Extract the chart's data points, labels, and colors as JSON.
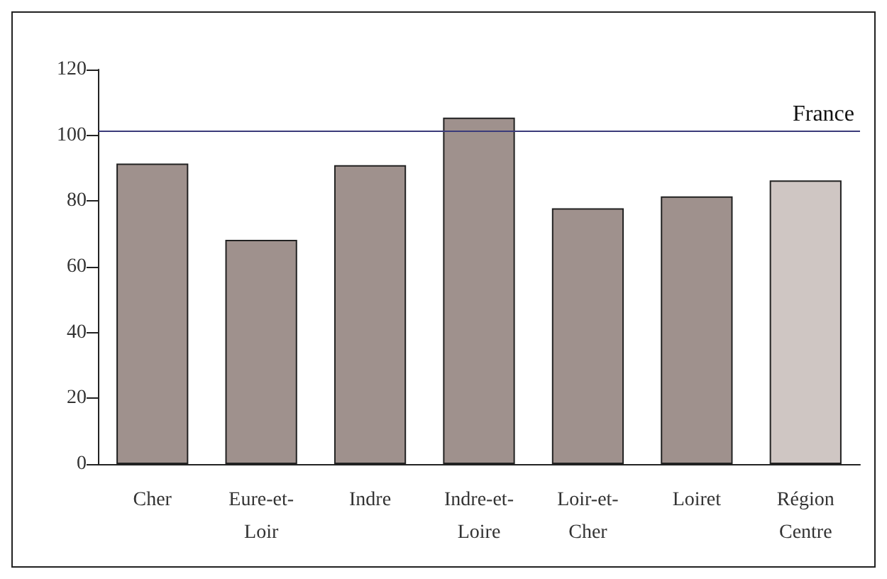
{
  "chart_data": {
    "type": "bar",
    "categories": [
      "Cher",
      "Eure-et-\nLoir",
      "Indre",
      "Indre-et-\nLoire",
      "Loir-et-\nCher",
      "Loiret",
      "Région\nCentre"
    ],
    "values": [
      91.4,
      68.2,
      90.9,
      105.4,
      77.8,
      81.4,
      86.3
    ],
    "colors": [
      "#9f918d",
      "#9f918d",
      "#9f918d",
      "#9f918d",
      "#9f918d",
      "#9f918d",
      "#cfc6c3"
    ],
    "ylim": [
      0,
      120
    ],
    "yticks": [
      0,
      20,
      40,
      60,
      80,
      100,
      120
    ],
    "grid": false,
    "ref_lines": [
      {
        "axis": "y",
        "value": 101.3,
        "label": "France",
        "color": "#3b3b7a"
      }
    ]
  }
}
